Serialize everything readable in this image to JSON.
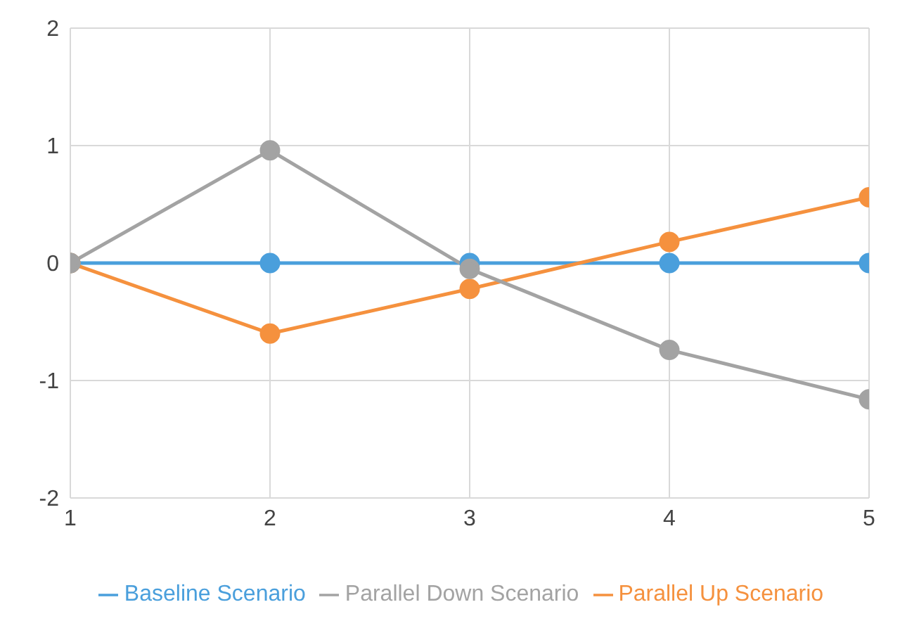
{
  "chart_data": {
    "type": "line",
    "x": [
      1,
      2,
      3,
      4,
      5
    ],
    "series": [
      {
        "name": "Baseline Scenario",
        "color": "#4a9fdc",
        "values": [
          0,
          0,
          0,
          0,
          0
        ]
      },
      {
        "name": "Parallel Up Scenario",
        "color": "#f5913e",
        "values": [
          0,
          -0.6,
          -0.22,
          0.18,
          0.56
        ]
      },
      {
        "name": "Parallel Down Scenario",
        "color": "#a3a3a3",
        "values": [
          0,
          0.96,
          -0.05,
          -0.74,
          -1.16
        ]
      }
    ],
    "xlim": [
      1,
      5
    ],
    "xticks": [
      1,
      2,
      3,
      4,
      5
    ],
    "ylim": [
      -2,
      2
    ],
    "yticks": [
      -2,
      -1,
      0,
      1,
      2
    ],
    "grid": true,
    "legend": "bottom",
    "marker": "circle",
    "line_style": "solid"
  }
}
